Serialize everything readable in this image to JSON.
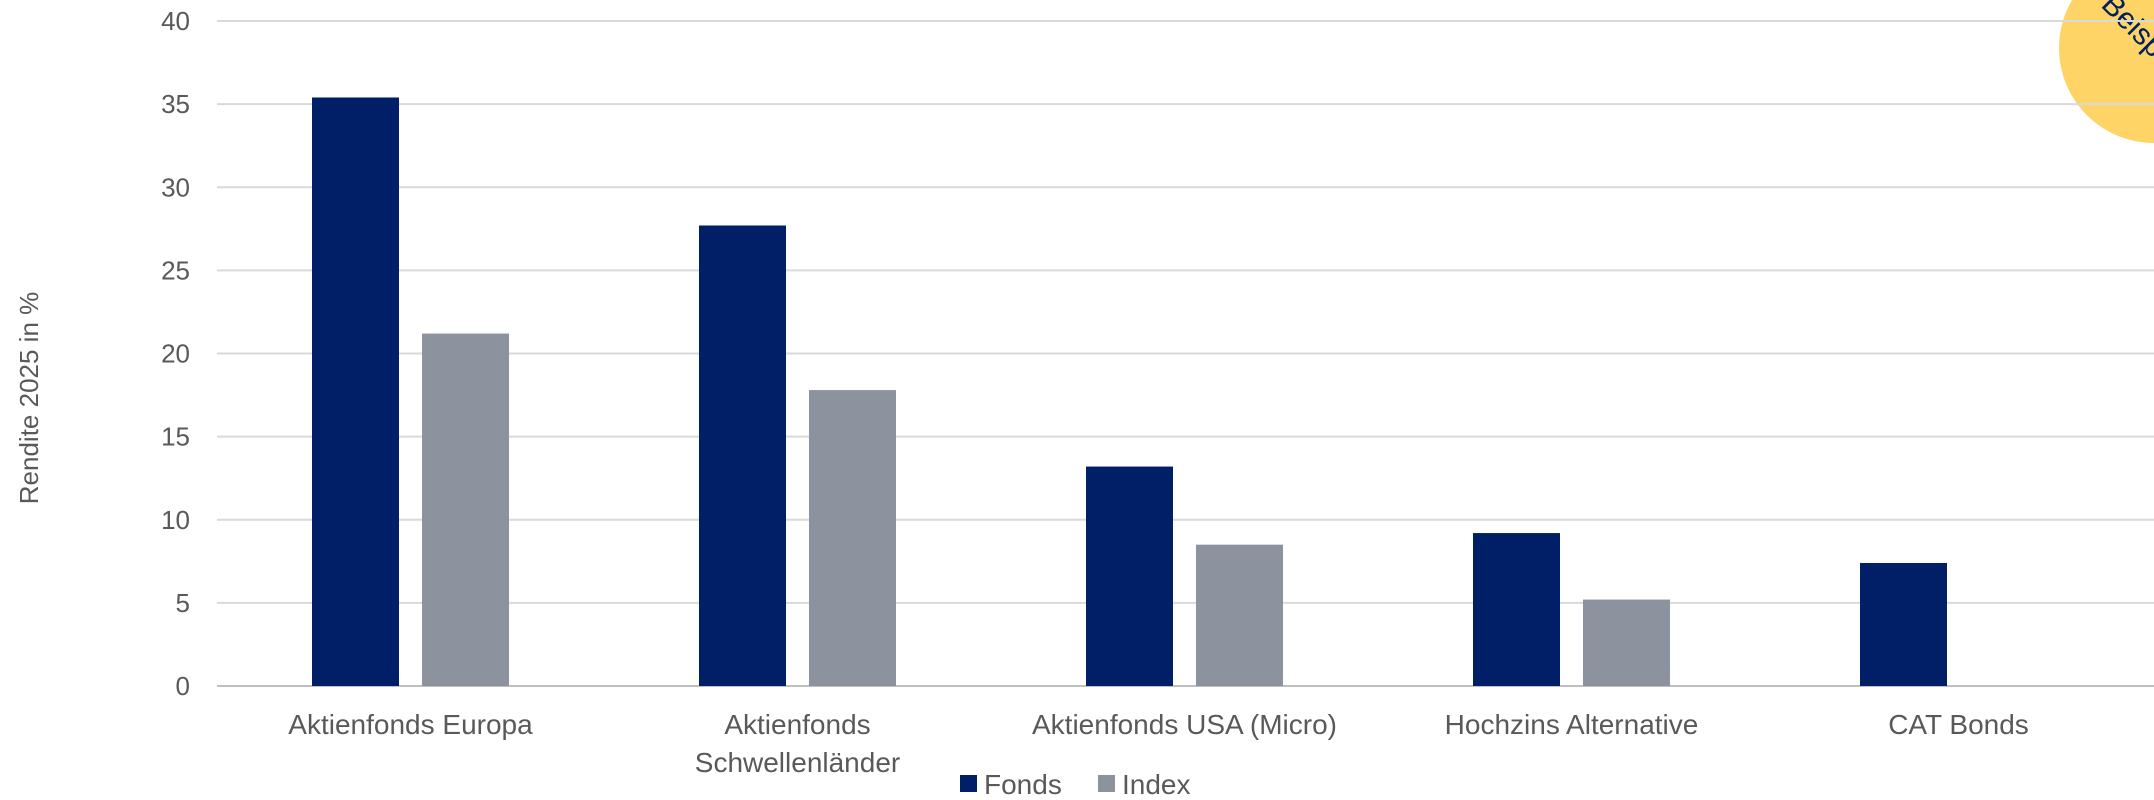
{
  "chart_data": {
    "type": "bar",
    "title": "",
    "xlabel": "",
    "ylabel": "Rendite 2025 in %",
    "ylim": [
      0,
      40
    ],
    "yticks": [
      0,
      5,
      10,
      15,
      20,
      25,
      30,
      35,
      40
    ],
    "grid": true,
    "legend_position": "bottom",
    "categories": [
      [
        "Aktienfonds Europa"
      ],
      [
        "Aktienfonds",
        "Schwellenländer"
      ],
      [
        "Aktienfonds USA (Micro)"
      ],
      [
        "Hochzins Alternative"
      ],
      [
        "CAT Bonds"
      ]
    ],
    "series": [
      {
        "name": "Fonds",
        "color": "#001F66",
        "values": [
          35.4,
          27.7,
          13.2,
          9.2,
          7.4
        ]
      },
      {
        "name": "Index",
        "color": "#8C929E",
        "values": [
          21.2,
          17.8,
          8.5,
          5.2,
          null
        ]
      }
    ]
  },
  "badge": {
    "text": "Beisp",
    "color": "#FFD466"
  }
}
